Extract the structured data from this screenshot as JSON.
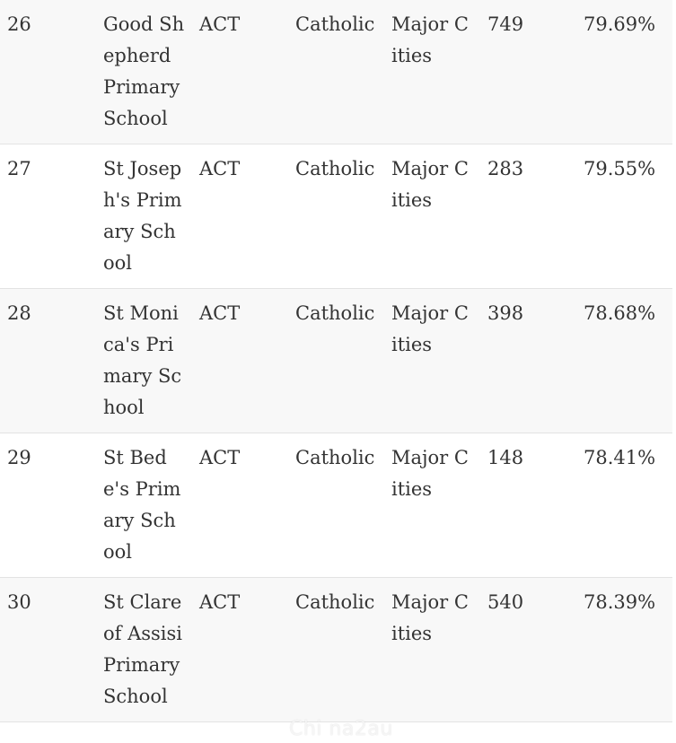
{
  "table": {
    "rows": [
      {
        "rank": "26",
        "name": "Good Shepherd Primary School",
        "state": "ACT",
        "sector": "Catholic",
        "region": "Major Cities",
        "enrolments": "749",
        "score": "79.69%"
      },
      {
        "rank": "27",
        "name": "St Joseph's Primary School",
        "state": "ACT",
        "sector": "Catholic",
        "region": "Major Cities",
        "enrolments": "283",
        "score": "79.55%"
      },
      {
        "rank": "28",
        "name": "St Monica's Primary School",
        "state": "ACT",
        "sector": "Catholic",
        "region": "Major Cities",
        "enrolments": "398",
        "score": "78.68%"
      },
      {
        "rank": "29",
        "name": "St Bede's Primary School",
        "state": "ACT",
        "sector": "Catholic",
        "region": "Major Cities",
        "enrolments": "148",
        "score": "78.41%"
      },
      {
        "rank": "30",
        "name": "St Clare of Assisi Primary School",
        "state": "ACT",
        "sector": "Catholic",
        "region": "Major Cities",
        "enrolments": "540",
        "score": "78.39%"
      }
    ]
  },
  "watermark": {
    "text": "Chi na2au"
  }
}
